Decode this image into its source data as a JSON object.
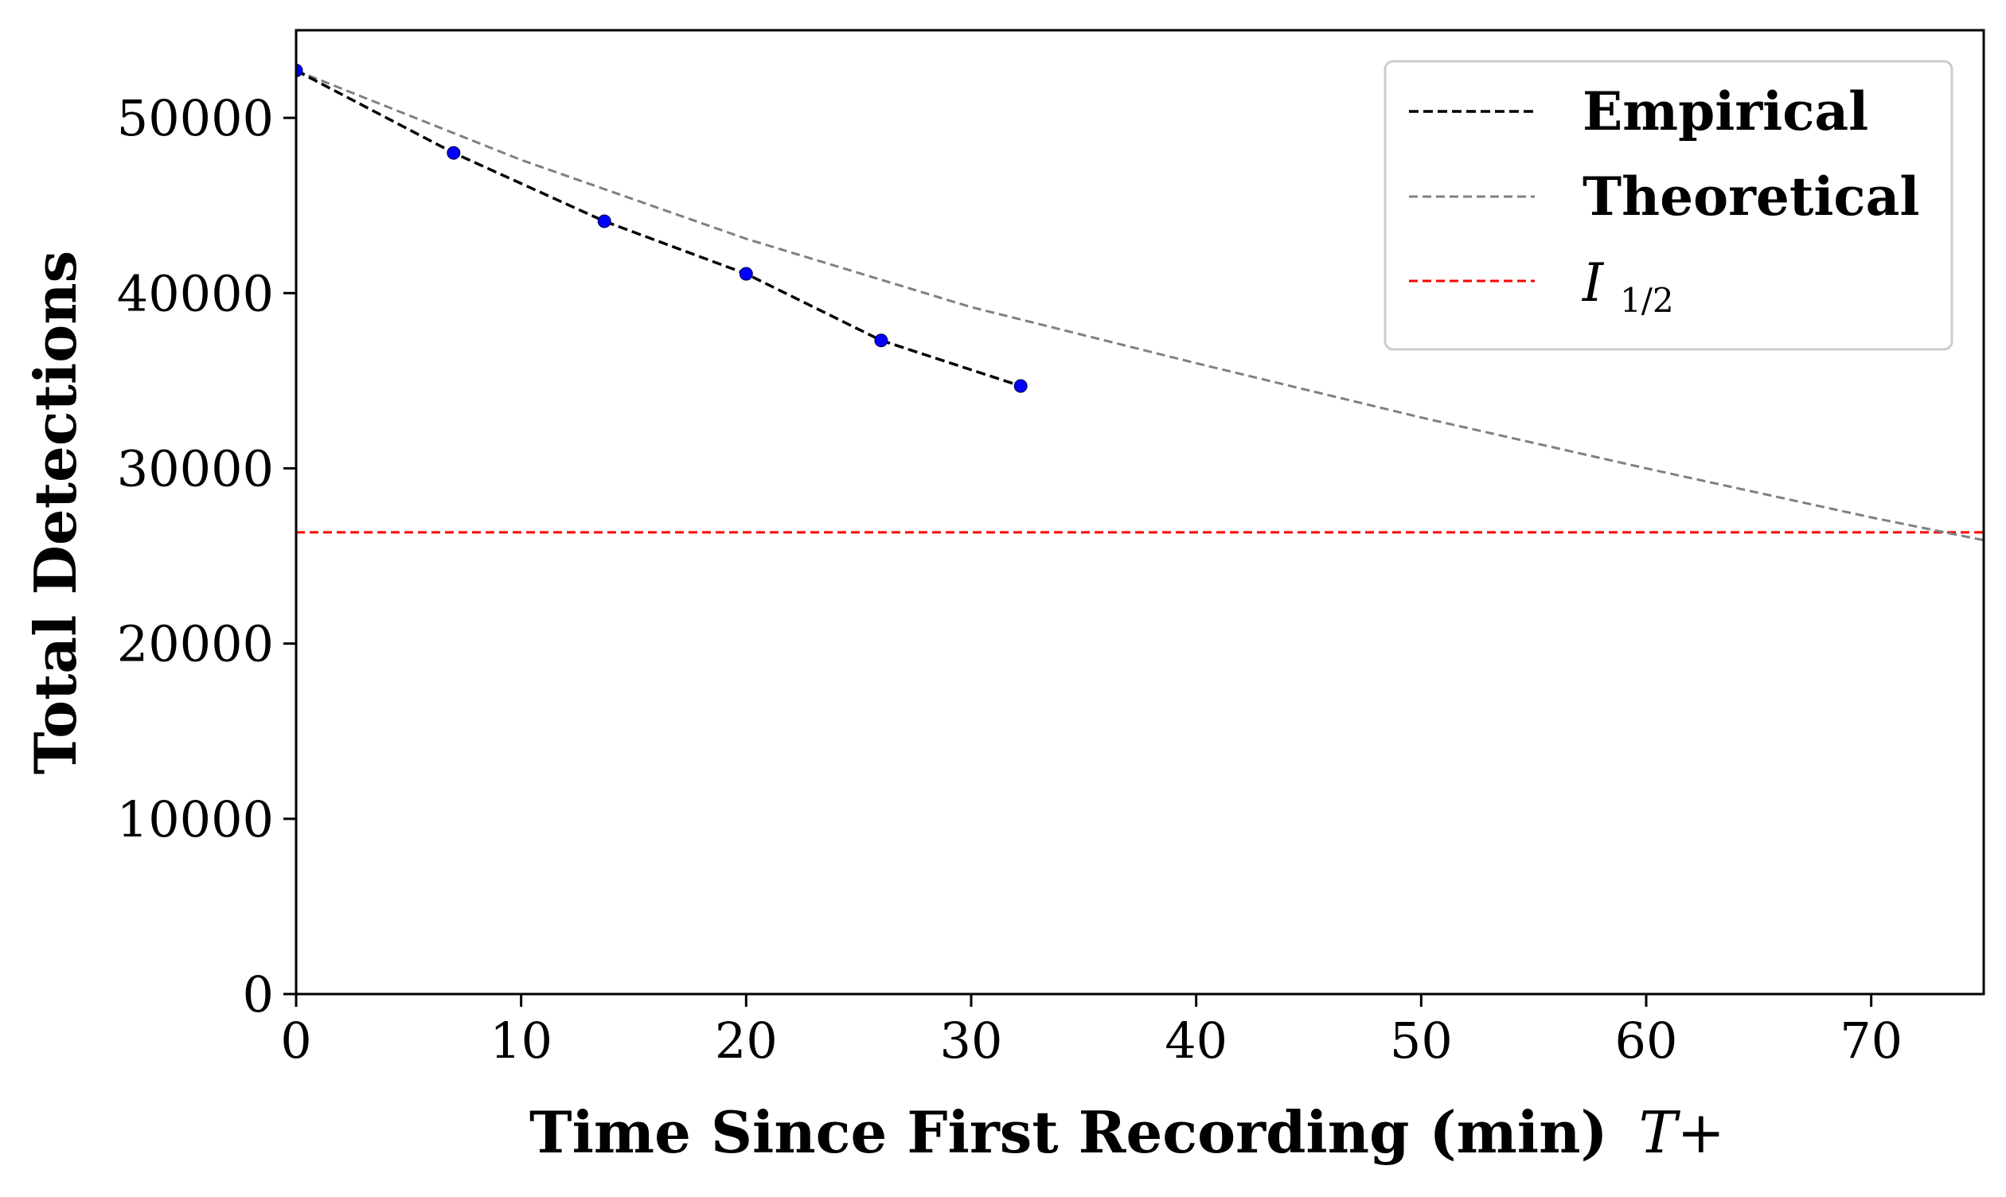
{
  "chart_data": {
    "type": "line",
    "xlabel": "Time Since First Recording (min)",
    "xlabel_math": "T+",
    "ylabel": "Total Detections",
    "xlim": [
      0,
      75
    ],
    "ylim": [
      0,
      55000
    ],
    "xticks": [
      0,
      10,
      20,
      30,
      40,
      50,
      60,
      70
    ],
    "yticks": [
      0,
      10000,
      20000,
      30000,
      40000,
      50000
    ],
    "grid": false,
    "legend_position": "top-right",
    "series": [
      {
        "name": "Empirical",
        "style": "dashed",
        "color": "#000000",
        "marker_color": "#0000ff",
        "points": [
          {
            "x": 0,
            "y": 52700
          },
          {
            "x": 7,
            "y": 48000
          },
          {
            "x": 13.7,
            "y": 44100
          },
          {
            "x": 20,
            "y": 41100
          },
          {
            "x": 26,
            "y": 37300
          },
          {
            "x": 32.2,
            "y": 34700
          }
        ]
      },
      {
        "name": "Theoretical",
        "style": "dashed",
        "color": "#808080",
        "points": [
          {
            "x": 0,
            "y": 52700
          },
          {
            "x": 10,
            "y": 47600
          },
          {
            "x": 20,
            "y": 43100
          },
          {
            "x": 30,
            "y": 39200
          },
          {
            "x": 40,
            "y": 36000
          },
          {
            "x": 50,
            "y": 32900
          },
          {
            "x": 60,
            "y": 30000
          },
          {
            "x": 70,
            "y": 27200
          },
          {
            "x": 75,
            "y": 25900
          }
        ]
      },
      {
        "name_base": "I",
        "name_sub": "1/2",
        "style": "dashed",
        "color": "#ff0000",
        "y": 26350
      }
    ]
  }
}
